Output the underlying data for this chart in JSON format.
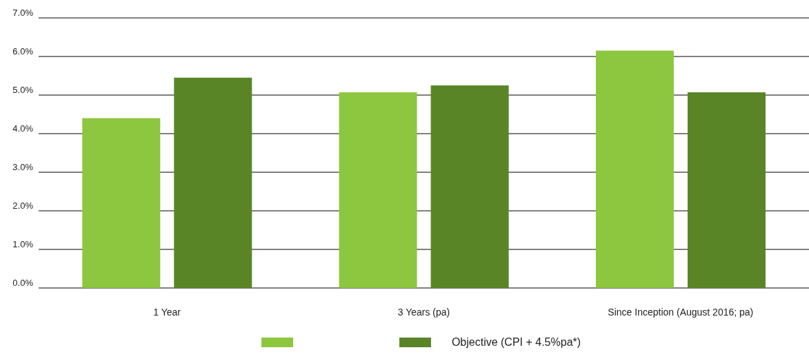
{
  "chart_data": {
    "type": "bar",
    "categories": [
      "1 Year",
      "3 Years (pa)",
      "Since Inception (August 2016; pa)"
    ],
    "series": [
      {
        "color": "#8dc63f",
        "values": [
          4.4,
          5.07,
          6.15
        ]
      },
      {
        "name": "Objective (CPI + 4.5%pa*)",
        "color": "#5a8527",
        "values": [
          5.45,
          5.25,
          5.07
        ]
      }
    ],
    "ylim": [
      0,
      7
    ],
    "yticks": [
      {
        "value": 0,
        "label": "0.0%"
      },
      {
        "value": 1,
        "label": "1.0%"
      },
      {
        "value": 2,
        "label": "2.0%"
      },
      {
        "value": 3,
        "label": "3.0%"
      },
      {
        "value": 4,
        "label": "4.0%"
      },
      {
        "value": 5,
        "label": "5.0%"
      },
      {
        "value": 6,
        "label": "6.0%"
      },
      {
        "value": 7,
        "label": "7.0%"
      }
    ],
    "grid": "y",
    "legend": "bottom"
  }
}
